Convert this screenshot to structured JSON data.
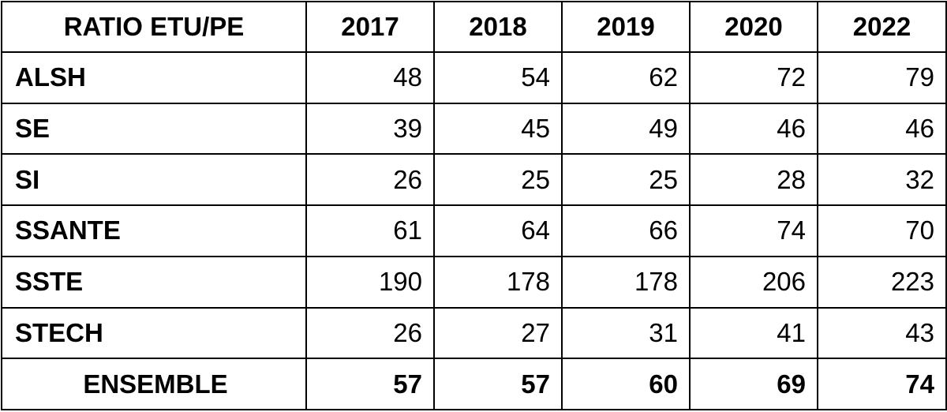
{
  "table": {
    "header": {
      "label": "RATIO ETU/PE",
      "years": [
        "2017",
        "2018",
        "2019",
        "2020",
        "2022"
      ]
    },
    "rows": [
      {
        "label": "ALSH",
        "values": [
          "48",
          "54",
          "62",
          "72",
          "79"
        ]
      },
      {
        "label": "SE",
        "values": [
          "39",
          "45",
          "49",
          "46",
          "46"
        ]
      },
      {
        "label": "SI",
        "values": [
          "26",
          "25",
          "25",
          "28",
          "32"
        ]
      },
      {
        "label": "SSANTE",
        "values": [
          "61",
          "64",
          "66",
          "74",
          "70"
        ]
      },
      {
        "label": "SSTE",
        "values": [
          "190",
          "178",
          "178",
          "206",
          "223"
        ]
      },
      {
        "label": "STECH",
        "values": [
          "26",
          "27",
          "31",
          "41",
          "43"
        ]
      }
    ],
    "total": {
      "label": "ENSEMBLE",
      "values": [
        "57",
        "57",
        "60",
        "69",
        "74"
      ]
    }
  }
}
